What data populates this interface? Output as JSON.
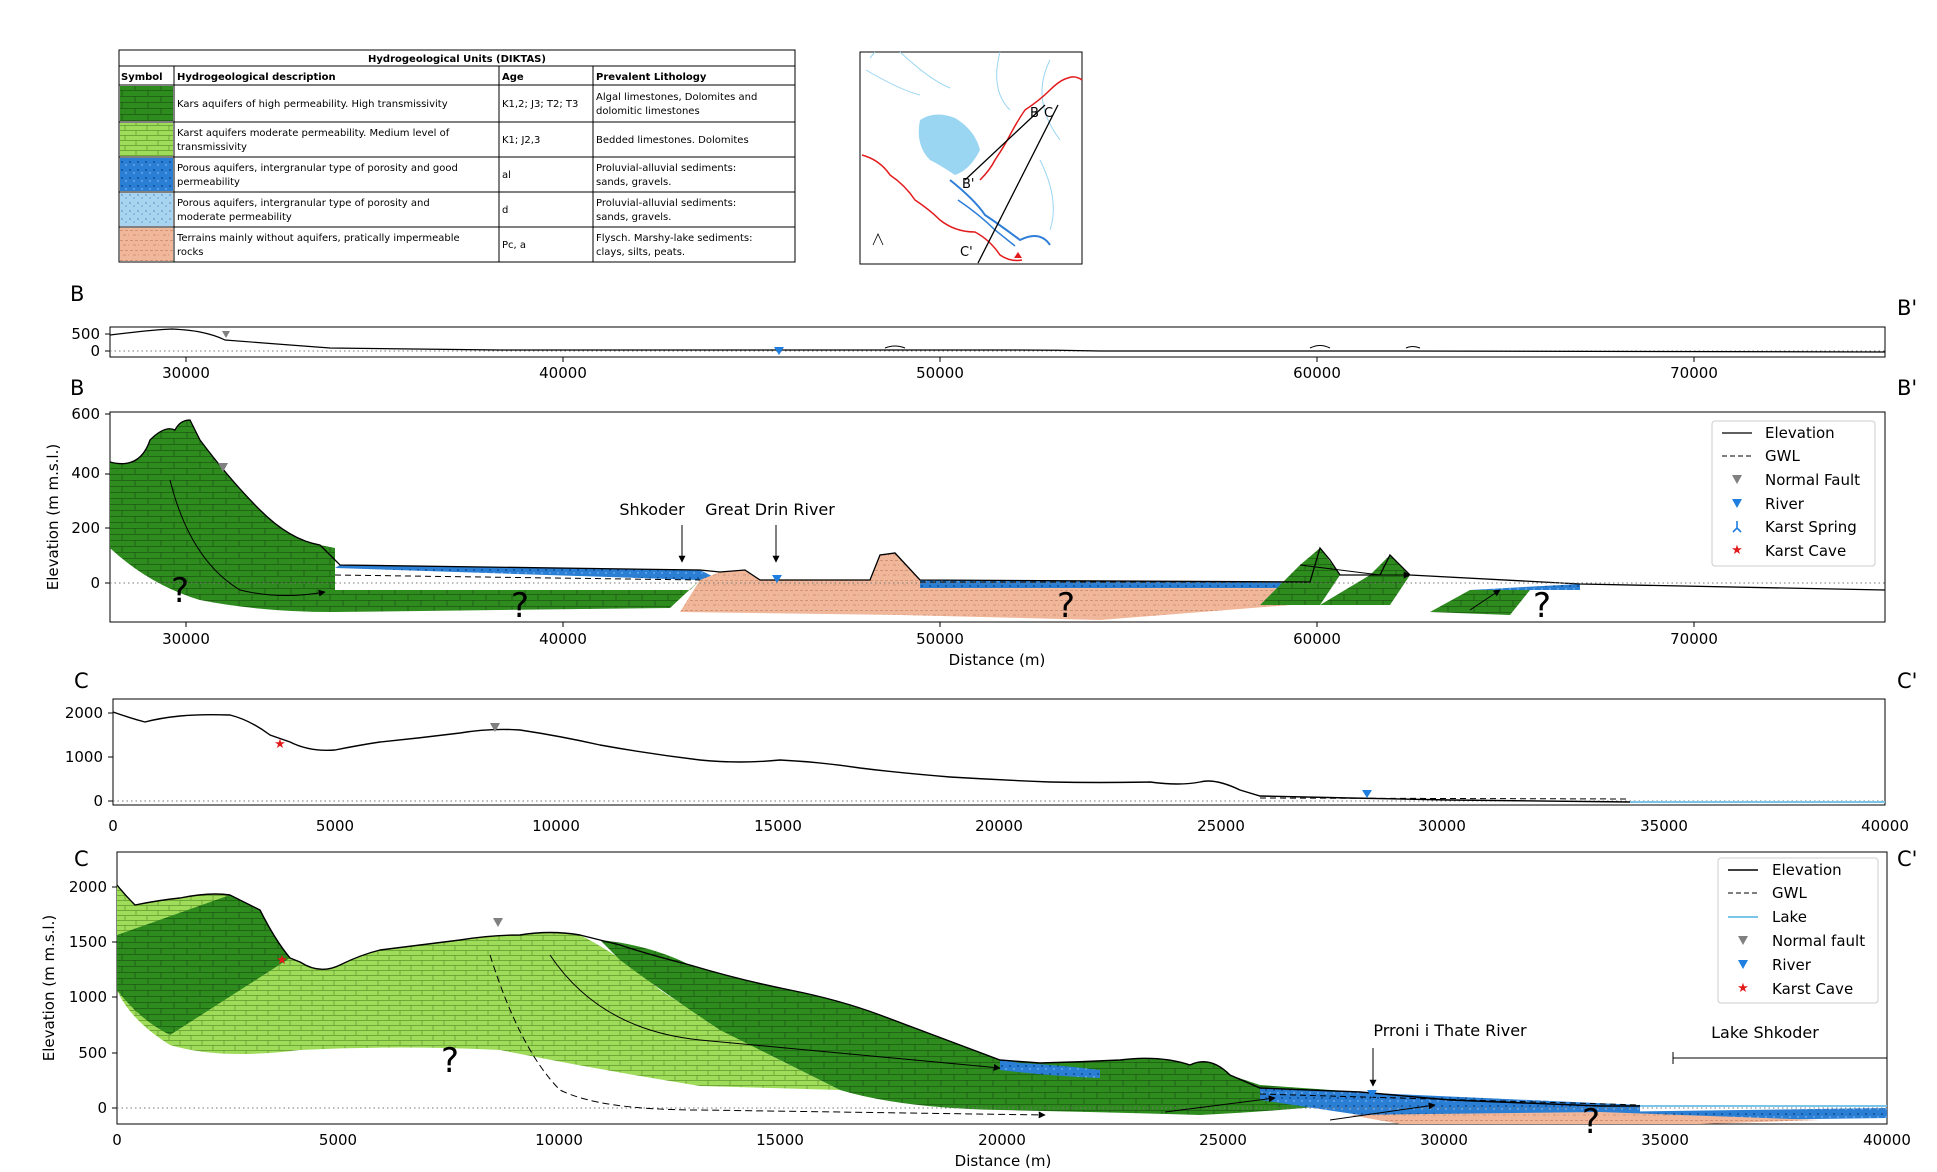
{
  "legend_table": {
    "title": "Hydrogeological Units (DIKTAS)",
    "headers": [
      "Symbol",
      "Hydrogeological description",
      "Age",
      "Prevalent Lithology"
    ],
    "rows": [
      {
        "desc": [
          "Kars aquifers of high permeability. High transmissivity"
        ],
        "age": "K1,2; J3; T2; T3",
        "litho": [
          "Algal limestones, Dolomites and",
          "dolomitic limestones"
        ],
        "fill": "#2e8b1e"
      },
      {
        "desc": [
          "Karst aquifers moderate permeability. Medium level of",
          "transmissivity"
        ],
        "age": "K1; J2,3",
        "litho": [
          "Bedded limestones. Dolomites"
        ],
        "fill": "#9fdc5a"
      },
      {
        "desc": [
          "Porous aquifers, intergranular type of porosity and good",
          "permeability"
        ],
        "age": "al",
        "litho": [
          "Proluvial-alluvial sediments:",
          "sands, gravels."
        ],
        "fill": "#2a7fd4"
      },
      {
        "desc": [
          "Porous aquifers, intergranular type of porosity and",
          "moderate permeability"
        ],
        "age": "d",
        "litho": [
          "Proluvial-alluvial sediments:",
          "sands, gravels."
        ],
        "fill": "#a9d4f0"
      },
      {
        "desc": [
          "Terrains mainly without aquifers, pratically impermeable",
          "rocks"
        ],
        "age": "Pc, a",
        "litho": [
          "Flysch. Marshy-lake sediments:",
          "clays, silts, peats."
        ],
        "fill": "#f1b79a"
      }
    ]
  },
  "map": {
    "labels": [
      "B",
      "C",
      "B'",
      "C'"
    ]
  },
  "section_b_overview": {
    "left_label": "B",
    "right_label": "B'",
    "x_ticks": [
      "30000",
      "40000",
      "50000",
      "60000",
      "70000"
    ],
    "y_ticks": [
      "500",
      "0"
    ]
  },
  "section_b": {
    "left_label": "B",
    "right_label": "B'",
    "x_ticks": [
      "30000",
      "40000",
      "50000",
      "60000",
      "70000"
    ],
    "y_ticks": [
      "600",
      "400",
      "200",
      "0"
    ],
    "x_label": "Distance (m)",
    "y_label": "Elevation (m m.s.l.)",
    "annotations": [
      "Shkoder",
      "Great Drin River"
    ],
    "legend": [
      "Elevation",
      "GWL",
      "Normal Fault",
      "River",
      "Karst Spring",
      "Karst Cave"
    ]
  },
  "section_c_overview": {
    "left_label": "C",
    "right_label": "C'",
    "x_ticks": [
      "0",
      "5000",
      "10000",
      "15000",
      "20000",
      "25000",
      "30000",
      "35000",
      "40000"
    ],
    "y_ticks": [
      "2000",
      "1000",
      "0"
    ]
  },
  "section_c": {
    "left_label": "C",
    "right_label": "C'",
    "x_ticks": [
      "0",
      "5000",
      "10000",
      "15000",
      "20000",
      "25000",
      "30000",
      "35000",
      "40000"
    ],
    "y_ticks": [
      "2000",
      "1500",
      "1000",
      "500",
      "0"
    ],
    "x_label": "Distance (m)",
    "y_label": "Elevation (m m.s.l.)",
    "annotations": [
      "Prroni i Thate River",
      "Lake Shkoder"
    ],
    "legend": [
      "Elevation",
      "GWL",
      "Lake",
      "Normal fault",
      "River",
      "Karst Cave"
    ]
  },
  "question_mark": "?",
  "colors": {
    "dark_green": "#2e8b1e",
    "light_green": "#9fdc5a",
    "blue": "#2a7fd4",
    "light_blue": "#a9d4f0",
    "salmon": "#f1b79a",
    "red": "#e31a1c",
    "gray": "#808080"
  }
}
